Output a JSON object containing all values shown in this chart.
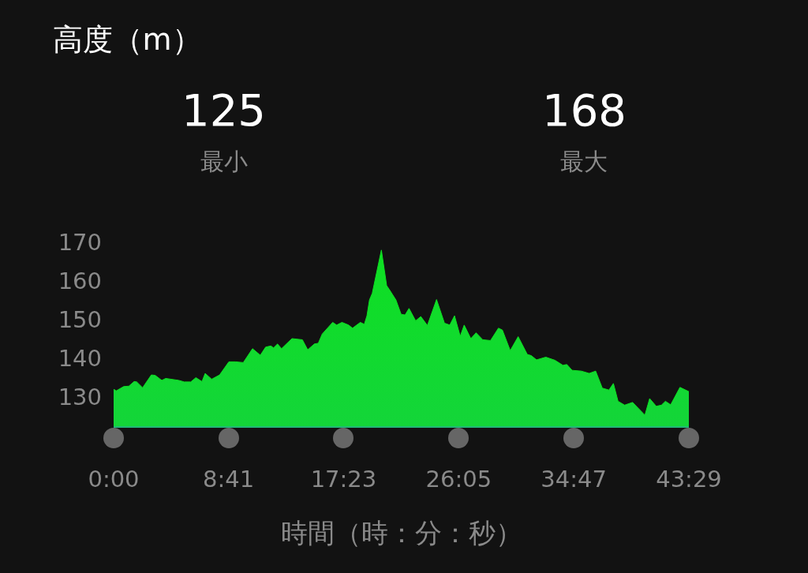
{
  "chart_data": {
    "type": "area",
    "title": "高度（m）",
    "xlabel": "時間（時：分：秒）",
    "annotations": [
      "125",
      "最小",
      "168",
      "最大"
    ],
    "x": [
      0,
      0.2,
      0.76,
      1.15,
      1.55,
      1.75,
      2.19,
      2.85,
      3.14,
      3.64,
      3.94,
      4.93,
      5.33,
      5.83,
      6.22,
      6.68,
      6.92,
      7.41,
      8.01,
      8.71,
      9.2,
      9.8,
      10.5,
      11.09,
      11.49,
      11.89,
      12.09,
      12.39,
      12.69,
      13.48,
      14.27,
      14.67,
      15.17,
      15.47,
      15.77,
      16.56,
      16.86,
      17.26,
      17.76,
      18.06,
      18.65,
      18.95,
      19.15,
      19.34,
      19.55,
      20.24,
      20.64,
      20.84,
      21.34,
      21.73,
      22.03,
      22.33,
      22.83,
      23.22,
      23.72,
      24.41,
      25.01,
      25.41,
      25.77,
      26.2,
      26.5,
      27.0,
      27.4,
      27.9,
      28.49,
      29.09,
      29.39,
      29.98,
      30.58,
      31.27,
      31.57,
      31.97,
      32.67,
      33.36,
      33.96,
      34.26,
      34.66,
      35.35,
      35.95,
      36.44,
      36.94,
      37.44,
      37.78,
      38.13,
      38.63,
      39.23,
      39.83,
      40.16,
      40.52,
      41.02,
      41.41,
      41.71,
      42.11,
      42.81,
      43.483
    ],
    "series": [
      {
        "color": "#0ee022",
        "values": [
          132.0,
          131.6,
          132.7,
          132.8,
          134.0,
          133.9,
          132.4,
          135.7,
          135.6,
          134.3,
          134.8,
          134.3,
          133.9,
          133.9,
          135.0,
          134.0,
          136.1,
          134.6,
          135.7,
          139.1,
          139.1,
          138.9,
          142.5,
          140.8,
          142.9,
          143.2,
          142.7,
          143.7,
          142.5,
          145.1,
          144.8,
          142.2,
          143.7,
          143.9,
          146.3,
          149.3,
          148.6,
          149.3,
          148.6,
          147.8,
          149.3,
          148.8,
          151.0,
          155.1,
          156.8,
          168.0,
          158.8,
          157.8,
          155.1,
          151.4,
          151.2,
          152.9,
          149.7,
          150.8,
          148.5,
          155.2,
          149.1,
          148.6,
          151.0,
          145.7,
          148.6,
          145.1,
          146.6,
          144.8,
          144.6,
          147.8,
          147.3,
          142.0,
          145.6,
          141.0,
          140.7,
          139.6,
          140.3,
          139.5,
          138.2,
          138.4,
          136.9,
          136.7,
          136.1,
          136.7,
          132.3,
          131.8,
          133.5,
          128.9,
          127.9,
          128.6,
          126.5,
          125.3,
          129.6,
          127.6,
          127.9,
          128.9,
          128.0,
          132.5,
          131.4
        ]
      }
    ],
    "xlim": [
      0,
      43.483
    ],
    "xticks": [
      {
        "value": 0,
        "label": "0:00"
      },
      {
        "value": 8.683,
        "label": "8:41"
      },
      {
        "value": 17.383,
        "label": "17:23"
      },
      {
        "value": 26.083,
        "label": "26:05"
      },
      {
        "value": 34.783,
        "label": "34:47"
      },
      {
        "value": 43.483,
        "label": "43:29"
      }
    ],
    "ylim": [
      122.45,
      170
    ],
    "yticks": [
      130,
      140,
      150,
      160,
      170
    ],
    "marker": "none"
  }
}
